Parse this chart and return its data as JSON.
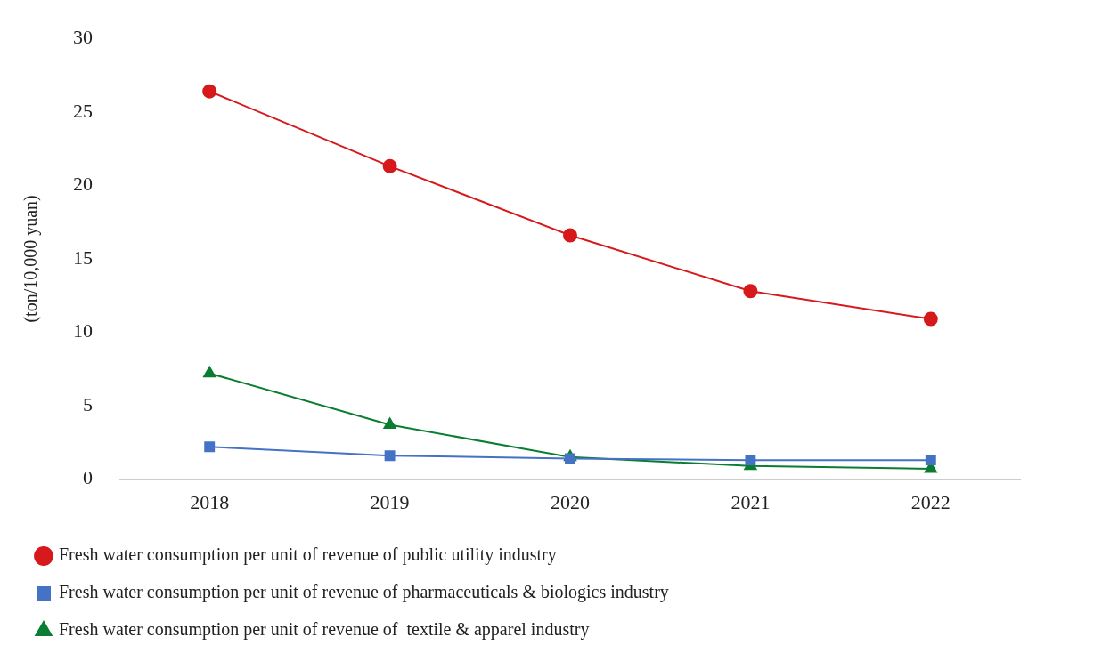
{
  "chart_data": {
    "type": "line",
    "ylabel": "(ton/10,000 yuan)",
    "categories": [
      "2018",
      "2019",
      "2020",
      "2021",
      "2022"
    ],
    "series": [
      {
        "name": "Fresh water consumption per unit of revenue of public utility industry",
        "color": "#d7191c",
        "marker": "circle",
        "values": [
          26.4,
          21.3,
          16.6,
          12.8,
          10.9
        ]
      },
      {
        "name": "Fresh water consumption per unit of revenue of pharmaceuticals & biologics industry",
        "color": "#4472c4",
        "marker": "square",
        "values": [
          2.2,
          1.6,
          1.4,
          1.3,
          1.3
        ]
      },
      {
        "name": "Fresh water consumption per unit of revenue of  textile & apparel industry",
        "color": "#0a7d32",
        "marker": "triangle",
        "values": [
          7.2,
          3.7,
          1.5,
          0.9,
          0.7
        ]
      }
    ],
    "ylim": [
      0,
      30
    ],
    "yticks": [
      0,
      5,
      10,
      15,
      20,
      25,
      30
    ],
    "grid": false,
    "legend": "bottom"
  }
}
